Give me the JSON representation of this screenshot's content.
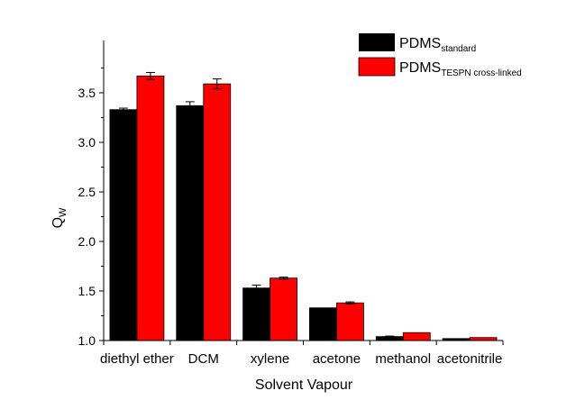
{
  "chart_data": {
    "type": "bar",
    "xlabel": "Solvent Vapour",
    "ylabel": {
      "main": "Q",
      "sub": "W"
    },
    "categories": [
      "diethyl ether",
      "DCM",
      "xylene",
      "acetone",
      "methanol",
      "acetonitrile"
    ],
    "ylim": [
      1.0,
      3.9
    ],
    "yticks": [
      1.0,
      1.5,
      2.0,
      2.5,
      3.0,
      3.5
    ],
    "ytick_labels": [
      "1.0",
      "1.5",
      "2.0",
      "2.5",
      "3.0",
      "3.5"
    ],
    "grid": false,
    "legend_position": "top-right",
    "series": [
      {
        "name": "PDMS",
        "name_sub": "standard",
        "color": "#000000",
        "values": [
          3.33,
          3.37,
          1.53,
          1.33,
          1.04,
          1.02
        ],
        "errors": [
          0.015,
          0.04,
          0.03,
          0.0,
          0.005,
          0.0
        ]
      },
      {
        "name": "PDMS",
        "name_sub": "TESPN cross-linked",
        "color": "#ff0000",
        "values": [
          3.67,
          3.59,
          1.63,
          1.38,
          1.08,
          1.03
        ],
        "errors": [
          0.035,
          0.05,
          0.01,
          0.01,
          0.0,
          0.0
        ]
      }
    ]
  }
}
